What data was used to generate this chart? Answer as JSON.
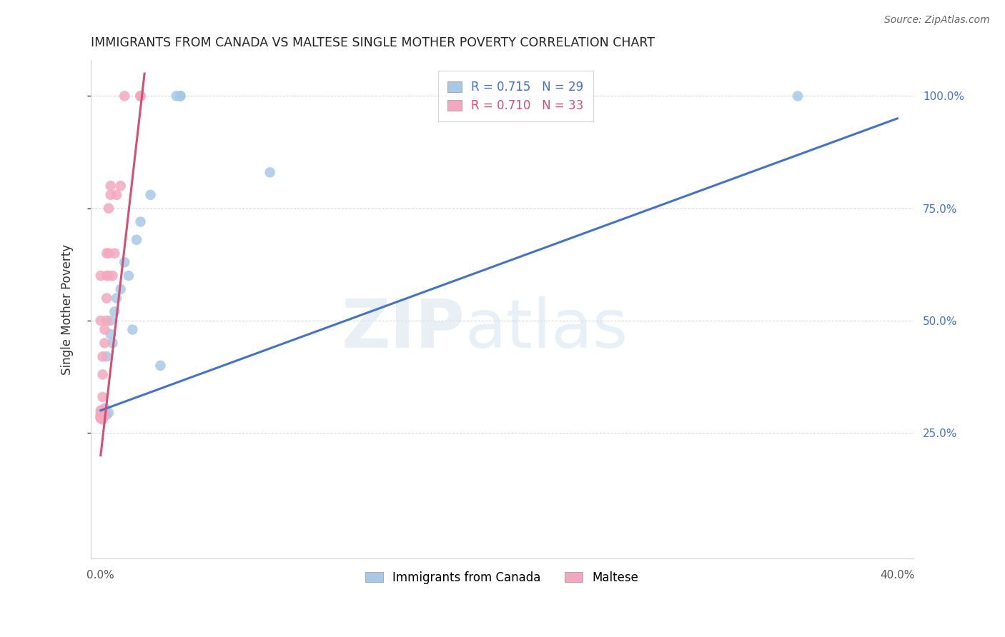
{
  "title": "IMMIGRANTS FROM CANADA VS MALTESE SINGLE MOTHER POVERTY CORRELATION CHART",
  "source": "Source: ZipAtlas.com",
  "ylabel": "Single Mother Poverty",
  "blue_R": "0.715",
  "blue_N": "29",
  "pink_R": "0.710",
  "pink_N": "33",
  "blue_dot_color": "#a8c8e8",
  "pink_dot_color": "#f4a8c0",
  "blue_line_color": "#4472C4",
  "pink_line_color": "#d45070",
  "legend_label_blue": "Immigrants from Canada",
  "legend_label_pink": "Maltese",
  "grid_color": "#cccccc",
  "title_color": "#222222",
  "source_color": "#666666",
  "ytick_color": "#4472C4",
  "xtick_color": "#555555",
  "blue_x": [
    0.0,
    0.0,
    0.001,
    0.001,
    0.001,
    0.002,
    0.002,
    0.003,
    0.003,
    0.004,
    0.005,
    0.005,
    0.006,
    0.007,
    0.008,
    0.01,
    0.012,
    0.014,
    0.016,
    0.018,
    0.02,
    0.025,
    0.03,
    0.038,
    0.04,
    0.04,
    0.04,
    0.085,
    0.35
  ],
  "blue_y": [
    0.285,
    0.29,
    0.295,
    0.295,
    0.3,
    0.3,
    0.305,
    0.42,
    0.29,
    0.295,
    0.47,
    0.5,
    0.45,
    0.52,
    0.55,
    0.57,
    0.63,
    0.6,
    0.48,
    0.68,
    0.72,
    0.78,
    0.4,
    1.0,
    1.0,
    1.0,
    1.0,
    0.83,
    1.0
  ],
  "pink_x": [
    0.0,
    0.0,
    0.0,
    0.0,
    0.0,
    0.0,
    0.001,
    0.001,
    0.001,
    0.001,
    0.001,
    0.002,
    0.002,
    0.002,
    0.003,
    0.003,
    0.003,
    0.003,
    0.004,
    0.004,
    0.004,
    0.005,
    0.005,
    0.006,
    0.007,
    0.008,
    0.01,
    0.012,
    0.02,
    0.02,
    0.02,
    0.0,
    0.0
  ],
  "pink_y": [
    0.285,
    0.29,
    0.295,
    0.3,
    0.285,
    0.282,
    0.3,
    0.33,
    0.38,
    0.42,
    0.28,
    0.45,
    0.48,
    0.29,
    0.5,
    0.55,
    0.6,
    0.65,
    0.6,
    0.65,
    0.75,
    0.78,
    0.8,
    0.6,
    0.65,
    0.78,
    0.8,
    1.0,
    1.0,
    1.0,
    1.0,
    0.6,
    0.5
  ],
  "blue_line_x": [
    0.0,
    0.4
  ],
  "blue_line_y": [
    0.3,
    0.95
  ],
  "pink_line_x": [
    0.0,
    0.022
  ],
  "pink_line_y": [
    0.2,
    1.05
  ],
  "xlim": [
    -0.005,
    0.408
  ],
  "ylim": [
    -0.03,
    1.08
  ]
}
